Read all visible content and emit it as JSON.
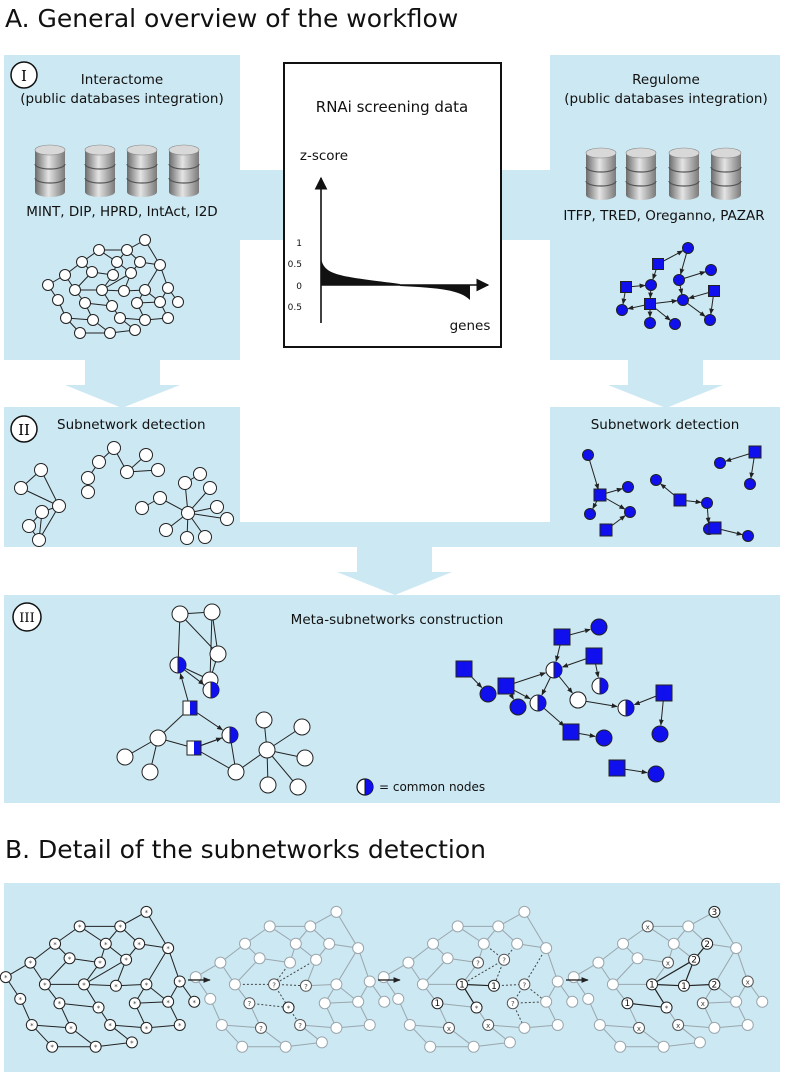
{
  "section_a": {
    "title": "A. General overview of the workflow",
    "step1": {
      "roman": "I",
      "interactome_title": "Interactome",
      "interactome_subtitle": "(public databases integration)",
      "interactome_dbs": "MINT, DIP, HPRD, IntAct, I2D",
      "regulome_title": "Regulome",
      "regulome_subtitle": "(public databases integration)",
      "regulome_dbs": "ITFP, TRED, Oreganno, PAZAR"
    },
    "rnai": {
      "title": "RNAi screening data",
      "y_label": "z-score",
      "x_label": "genes",
      "ticks": [
        "1",
        "0.5",
        "0",
        "0.5"
      ]
    },
    "step2": {
      "roman": "II",
      "left_title": "Subnetwork detection",
      "right_title": "Subnetwork detection"
    },
    "step3": {
      "roman": "III",
      "title": "Meta-subnetworks construction",
      "legend": "= common nodes"
    }
  },
  "section_b": {
    "title": "B. Detail of the subnetworks detection",
    "marks": {
      "star": "*",
      "unknown": "?",
      "excluded": "x",
      "one": "1",
      "two": "2",
      "three": "3"
    }
  },
  "colors": {
    "panel": "#cce8f2",
    "node_blue": "#1010ee",
    "edge": "#222222",
    "faded": "#9aa6ad"
  }
}
